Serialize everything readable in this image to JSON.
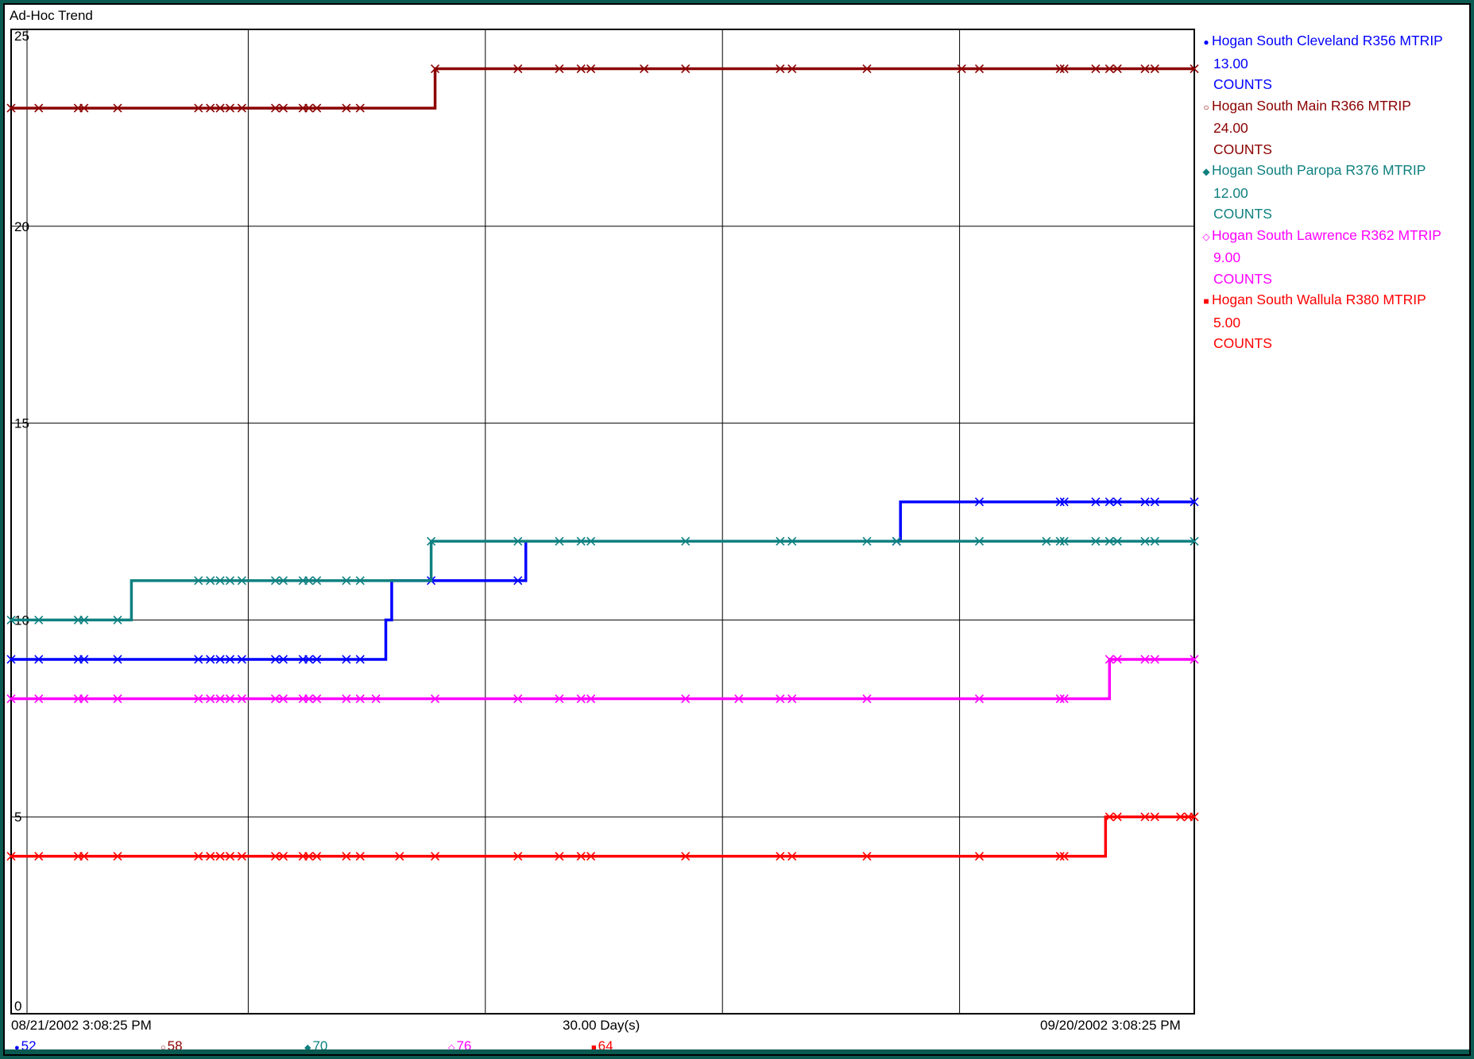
{
  "window": {
    "title": "Ad-Hoc Trend"
  },
  "axis": {
    "start_label": "08/21/2002 3:08:25 PM",
    "span_label": "30.00 Day(s)",
    "end_label": "09/20/2002 3:08:25 PM"
  },
  "legend": [
    {
      "name": "Hogan South Cleveland R356 MTRIP",
      "value": "13.00",
      "unit": "COUNTS",
      "color": "#0000ff",
      "marker": "●"
    },
    {
      "name": "Hogan South Main R366 MTRIP",
      "value": "24.00",
      "unit": "COUNTS",
      "color": "#8b0000",
      "marker": "○"
    },
    {
      "name": "Hogan South Paropa R376 MTRIP",
      "value": "12.00",
      "unit": "COUNTS",
      "color": "#0f8080",
      "marker": "◆"
    },
    {
      "name": "Hogan South Lawrence R362 MTRIP",
      "value": "9.00",
      "unit": "COUNTS",
      "color": "#ff00ff",
      "marker": "◇"
    },
    {
      "name": "Hogan South Wallula R380 MTRIP",
      "value": "5.00",
      "unit": "COUNTS",
      "color": "#ff0000",
      "marker": "■"
    }
  ],
  "footer": [
    {
      "label": "52",
      "color": "#0000ff",
      "marker": "●"
    },
    {
      "label": "58",
      "color": "#8b0000",
      "marker": "○"
    },
    {
      "label": "70",
      "color": "#0f8080",
      "marker": "◆"
    },
    {
      "label": "76",
      "color": "#ff00ff",
      "marker": "◇"
    },
    {
      "label": "64",
      "color": "#ff0000",
      "marker": "■"
    }
  ],
  "chart_data": {
    "type": "line",
    "title": "Ad-Hoc Trend",
    "x_unit": "days",
    "xlim": [
      0,
      30
    ],
    "ylim": [
      0,
      25
    ],
    "yticks": [
      0,
      5,
      10,
      15,
      20,
      25
    ],
    "grid": true,
    "legend_position": "right",
    "series": [
      {
        "name": "Hogan South Cleveland R356 MTRIP",
        "color": "#0000ff",
        "steps": [
          [
            0,
            9
          ],
          [
            9.5,
            10
          ],
          [
            9.65,
            11
          ],
          [
            10.65,
            11
          ],
          [
            13.05,
            12
          ],
          [
            22.05,
            12
          ],
          [
            22.55,
            13
          ],
          [
            30,
            13
          ]
        ],
        "markers": [
          0,
          0.7,
          1.7,
          1.85,
          2.7,
          4.75,
          5.05,
          5.3,
          5.55,
          5.85,
          6.7,
          6.9,
          7.4,
          7.55,
          7.75,
          8.5,
          8.85,
          10.65,
          12.85,
          22.45,
          24.55,
          26.6,
          26.7,
          27.5,
          27.85,
          28.05,
          28.75,
          29,
          30
        ]
      },
      {
        "name": "Hogan South Main R366 MTRIP",
        "color": "#8b0000",
        "steps": [
          [
            0,
            23
          ],
          [
            10.75,
            24
          ],
          [
            30,
            24
          ]
        ],
        "markers": [
          0,
          0.7,
          1.7,
          1.85,
          2.7,
          4.75,
          5.05,
          5.3,
          5.55,
          5.85,
          6.7,
          6.9,
          7.4,
          7.55,
          7.75,
          8.5,
          8.85,
          10.75,
          12.85,
          13.9,
          14.45,
          14.7,
          16.05,
          17.1,
          19.5,
          19.8,
          21.7,
          24.1,
          24.55,
          26.6,
          26.7,
          27.5,
          27.85,
          28.05,
          28.75,
          29,
          30
        ]
      },
      {
        "name": "Hogan South Paropa R376 MTRIP",
        "color": "#0f8080",
        "steps": [
          [
            0,
            10
          ],
          [
            3.05,
            11
          ],
          [
            10.65,
            12
          ],
          [
            30,
            12
          ]
        ],
        "markers": [
          0,
          0.7,
          1.7,
          1.85,
          2.7,
          4.75,
          5.05,
          5.3,
          5.55,
          5.85,
          6.7,
          6.9,
          7.4,
          7.55,
          7.75,
          8.5,
          8.85,
          10.65,
          12.85,
          13.9,
          14.45,
          14.7,
          17.1,
          19.5,
          19.8,
          21.7,
          22.45,
          24.55,
          26.25,
          26.6,
          26.7,
          27.5,
          27.85,
          28.05,
          28.75,
          29,
          30
        ]
      },
      {
        "name": "Hogan South Lawrence R362 MTRIP",
        "color": "#ff00ff",
        "steps": [
          [
            0,
            8
          ],
          [
            27.85,
            9
          ],
          [
            30,
            9
          ]
        ],
        "markers": [
          0,
          0.7,
          1.7,
          1.85,
          2.7,
          4.75,
          5.05,
          5.3,
          5.55,
          5.85,
          6.7,
          6.9,
          7.4,
          7.55,
          7.75,
          8.5,
          8.85,
          9.25,
          10.75,
          12.85,
          13.9,
          14.45,
          14.7,
          17.1,
          18.45,
          19.5,
          19.8,
          21.7,
          24.55,
          26.6,
          26.7,
          27.85,
          28.05,
          28.75,
          29,
          30
        ]
      },
      {
        "name": "Hogan South Wallula R380 MTRIP",
        "color": "#ff0000",
        "steps": [
          [
            0,
            4
          ],
          [
            27.75,
            5
          ],
          [
            30,
            5
          ]
        ],
        "markers": [
          0,
          0.7,
          1.7,
          1.85,
          2.7,
          4.75,
          5.05,
          5.3,
          5.55,
          5.85,
          6.7,
          6.9,
          7.4,
          7.55,
          7.75,
          8.5,
          8.85,
          9.85,
          10.75,
          12.85,
          13.9,
          14.45,
          14.7,
          17.1,
          19.5,
          19.8,
          21.7,
          24.55,
          26.6,
          26.7,
          27.85,
          28.05,
          28.75,
          29,
          29.65,
          29.85,
          30
        ]
      }
    ]
  }
}
